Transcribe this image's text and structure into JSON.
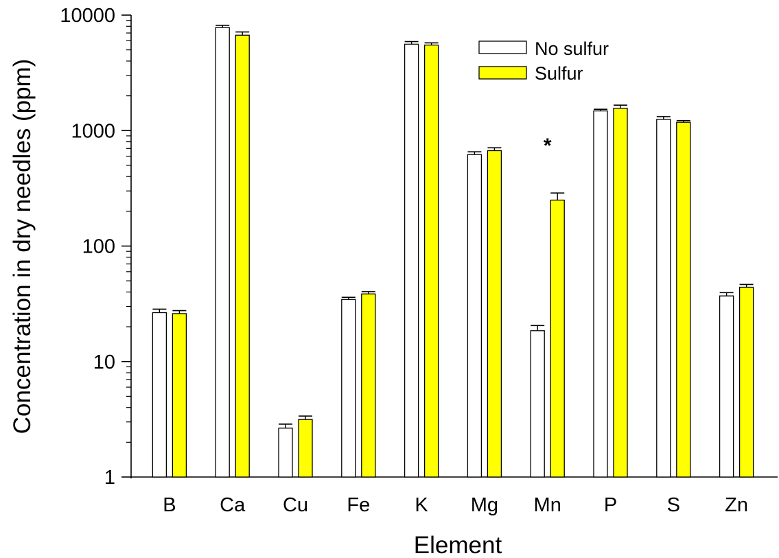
{
  "chart_data": {
    "type": "bar",
    "title": "",
    "xlabel": "Element",
    "ylabel": "Concentration in dry needles (ppm)",
    "yscale": "log",
    "ylim": [
      1,
      10000
    ],
    "yticks": [
      1,
      10,
      100,
      1000,
      10000
    ],
    "ytick_labels": [
      "1",
      "10",
      "100",
      "1000",
      "10000"
    ],
    "categories": [
      "B",
      "Ca",
      "Cu",
      "Fe",
      "K",
      "Mg",
      "Mn",
      "P",
      "S",
      "Zn"
    ],
    "series": [
      {
        "name": "No sulfur",
        "color": "#ffffff",
        "values": [
          26.5,
          7800,
          2.65,
          34.5,
          5600,
          620,
          18.5,
          1480,
          1250,
          37
        ],
        "errors": [
          1.9,
          350,
          0.22,
          1.5,
          300,
          35,
          2.0,
          50,
          70,
          2.5
        ]
      },
      {
        "name": "Sulfur",
        "color": "#ffff00",
        "values": [
          26,
          6700,
          3.15,
          38.5,
          5500,
          670,
          250,
          1560,
          1180,
          44
        ],
        "errors": [
          1.6,
          450,
          0.22,
          1.8,
          250,
          40,
          38,
          100,
          40,
          2.5
        ]
      }
    ],
    "annotations": [
      {
        "text": "*",
        "category": "Mn"
      }
    ],
    "legend": {
      "position": "top-right",
      "entries": [
        "No sulfur",
        "Sulfur"
      ]
    },
    "grid": false
  }
}
